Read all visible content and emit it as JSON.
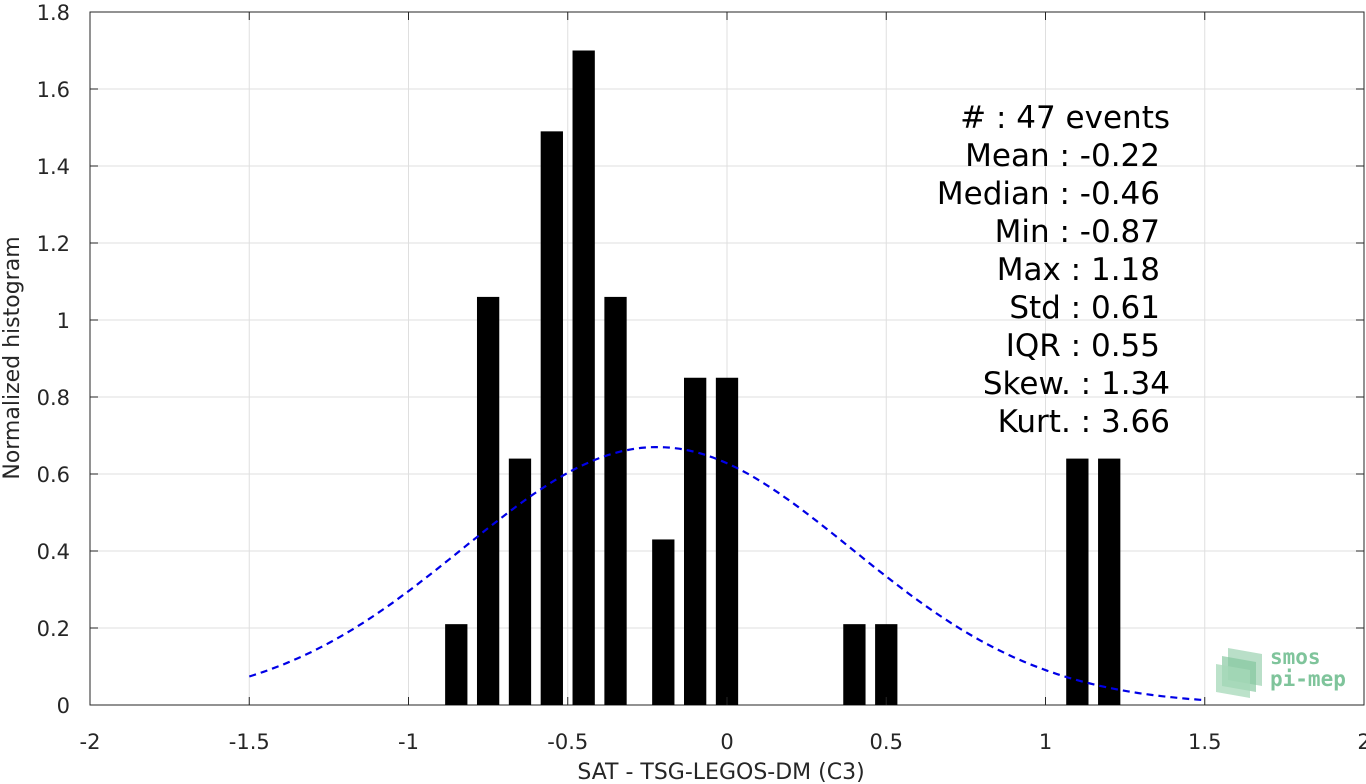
{
  "chart_data": {
    "type": "bar",
    "xlabel": "SAT - TSG-LEGOS-DM (C3)",
    "ylabel": "Normalized histogram",
    "xlim": [
      -2,
      2
    ],
    "ylim": [
      0,
      1.8
    ],
    "xticks": [
      "-2",
      "-1.5",
      "-1",
      "-0.5",
      "0",
      "0.5",
      "1",
      "1.5",
      "2"
    ],
    "xtick_values": [
      -2,
      -1.5,
      -1,
      -0.5,
      0,
      0.5,
      1,
      1.5,
      2
    ],
    "yticks": [
      "0",
      "0.2",
      "0.4",
      "0.6",
      "0.8",
      "1",
      "1.2",
      "1.4",
      "1.6",
      "1.8"
    ],
    "ytick_values": [
      0,
      0.2,
      0.4,
      0.6,
      0.8,
      1.0,
      1.2,
      1.4,
      1.6,
      1.8
    ],
    "grid": true,
    "bars": [
      {
        "x": -0.85,
        "value": 0.21
      },
      {
        "x": -0.75,
        "value": 1.06
      },
      {
        "x": -0.65,
        "value": 0.64
      },
      {
        "x": -0.55,
        "value": 1.49
      },
      {
        "x": -0.45,
        "value": 1.7
      },
      {
        "x": -0.35,
        "value": 1.06
      },
      {
        "x": -0.2,
        "value": 0.43
      },
      {
        "x": -0.1,
        "value": 0.85
      },
      {
        "x": 0.0,
        "value": 0.85
      },
      {
        "x": 0.4,
        "value": 0.21
      },
      {
        "x": 0.5,
        "value": 0.21
      },
      {
        "x": 1.1,
        "value": 0.64
      },
      {
        "x": 1.2,
        "value": 0.64
      }
    ],
    "bar_width": 0.07,
    "bar_color": "#000000",
    "fit_curve": {
      "type": "normal",
      "mean": -0.22,
      "std": 0.61,
      "x_range": [
        -1.5,
        1.5
      ],
      "color": "#0000e6",
      "style": "dashed"
    },
    "stats_lines": [
      "#  : 47 events",
      "Mean : -0.22",
      "Median : -0.46",
      "Min : -0.87",
      "Max : 1.18",
      "Std : 0.61",
      "IQR : 0.55",
      "Skew. : 1.34",
      "Kurt. : 3.66"
    ]
  },
  "logo": {
    "line1": "smos",
    "line2": "pi-mep",
    "color": "#7fc49b"
  }
}
